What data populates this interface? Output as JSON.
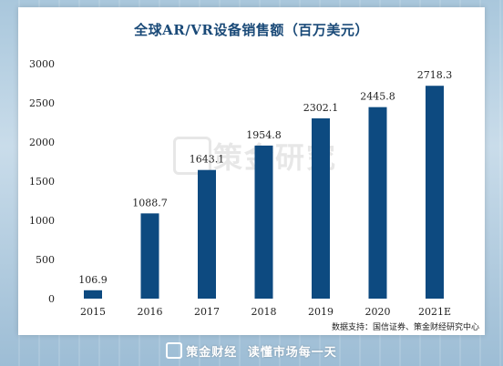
{
  "chart_data": {
    "type": "bar",
    "title": "全球AR/VR设备销售额（百万美元）",
    "categories": [
      "2015",
      "2016",
      "2017",
      "2018",
      "2019",
      "2020",
      "2021E"
    ],
    "values": [
      106.9,
      1088.7,
      1643.1,
      1954.8,
      2302.1,
      2445.8,
      2718.3
    ],
    "value_labels": [
      "106.9",
      "1088.7",
      "1643.1",
      "1954.8",
      "2302.1",
      "2445.8",
      "2718.3"
    ],
    "yticks": [
      "0",
      "500",
      "1000",
      "1500",
      "2000",
      "2500",
      "3000"
    ],
    "ylim": [
      0,
      3000
    ],
    "xlabel": "",
    "ylabel": "",
    "grid": false,
    "bar_color": "#0d4a80"
  },
  "source_text": "数据支持：国信证券、策金财经研究中心",
  "watermark": {
    "text": "策金研究",
    "icon": "logo-box-icon"
  },
  "footer": {
    "brand": "策金财经",
    "slogan": "读懂市场每一天",
    "icon": "logo-box-icon"
  },
  "colors": {
    "title": "#1a4a78",
    "bar": "#0d4a80"
  }
}
